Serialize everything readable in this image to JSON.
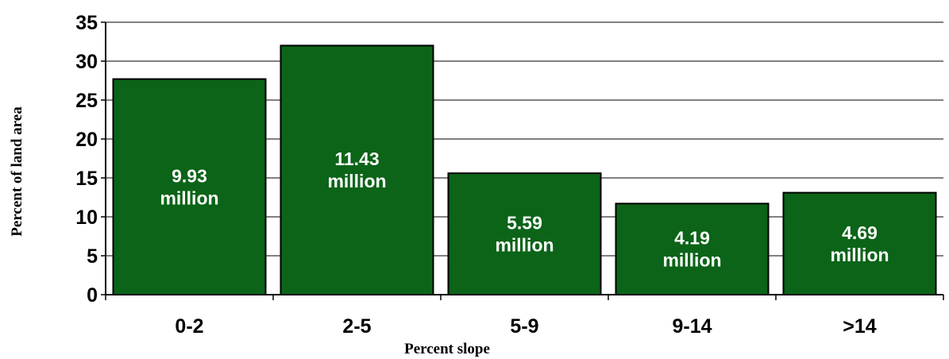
{
  "chart_data": {
    "type": "bar",
    "title": "",
    "xlabel": "Percent slope",
    "ylabel": "Percent of land area",
    "categories": [
      "0-2",
      "2-5",
      "5-9",
      "9-14",
      ">14"
    ],
    "values": [
      27.7,
      32.0,
      15.6,
      11.7,
      13.1
    ],
    "bar_labels": [
      [
        "9.93",
        "million"
      ],
      [
        "11.43",
        "million"
      ],
      [
        "5.59",
        "million"
      ],
      [
        "4.19",
        "million"
      ],
      [
        "4.69",
        "million"
      ]
    ],
    "ylim": [
      0,
      35
    ],
    "yticks": [
      0,
      5,
      10,
      15,
      20,
      25,
      30,
      35
    ],
    "grid": true,
    "legend": "none",
    "colors": {
      "bar_fill": "#0b6418",
      "bar_stroke": "#000000",
      "bar_label": "#ffffff",
      "grid": "#000000"
    }
  }
}
